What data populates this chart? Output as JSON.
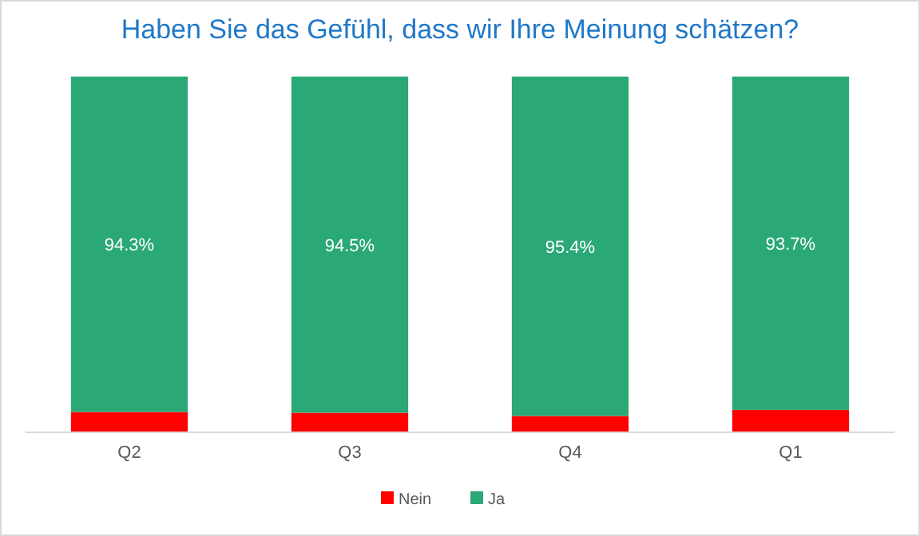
{
  "chart_data": {
    "type": "bar",
    "title": "Haben Sie das Gefühl, dass wir Ihre Meinung schätzen?",
    "categories": [
      "Q2",
      "Q3",
      "Q4",
      "Q1"
    ],
    "stacked": true,
    "ylim": [
      0,
      100
    ],
    "tick_labels": "x",
    "legend": "bottom",
    "series": [
      {
        "name": "Nein",
        "color": "#ff0000",
        "values": [
          5.7,
          5.5,
          4.6,
          6.3
        ]
      },
      {
        "name": "Ja",
        "color": "#2aa876",
        "values": [
          94.3,
          94.5,
          95.4,
          93.7
        ],
        "value_labels": [
          "94.3%",
          "94.5%",
          "95.4%",
          "93.7%"
        ]
      }
    ]
  }
}
